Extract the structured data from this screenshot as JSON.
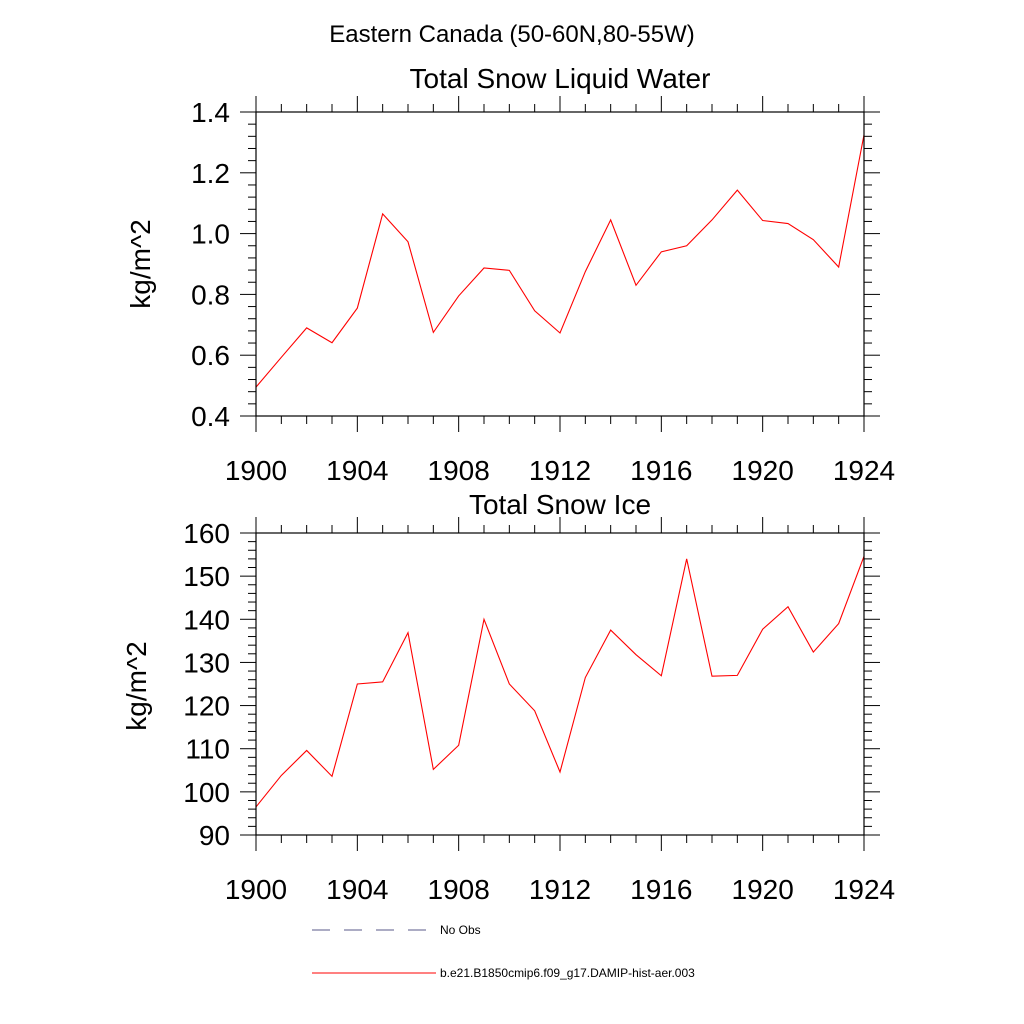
{
  "figure_title": "Eastern Canada (50-60N,80-55W)",
  "chart_data": [
    {
      "type": "line",
      "title": "Total Snow Liquid Water",
      "xlabel": "",
      "ylabel": "kg/m^2",
      "xlim": [
        1900,
        1924
      ],
      "ylim": [
        0.4,
        1.4
      ],
      "x_ticks": [
        1900,
        1904,
        1908,
        1912,
        1916,
        1920,
        1924
      ],
      "y_ticks": [
        0.4,
        0.6,
        0.8,
        1.0,
        1.2,
        1.4
      ],
      "x_tick_labels": [
        "1900",
        "1904",
        "1908",
        "1912",
        "1916",
        "1920",
        "1924"
      ],
      "y_tick_labels": [
        "0.4",
        "0.6",
        "0.8",
        "1.0",
        "1.2",
        "1.4"
      ],
      "grid": false,
      "series": [
        {
          "name": "b.e21.B1850cmip6.f09_g17.DAMIP-hist-aer.003",
          "color": "#ff0000",
          "x": [
            1900,
            1901,
            1902,
            1903,
            1904,
            1905,
            1906,
            1907,
            1908,
            1909,
            1910,
            1911,
            1912,
            1913,
            1914,
            1915,
            1916,
            1917,
            1918,
            1919,
            1920,
            1921,
            1922,
            1923,
            1924
          ],
          "values": [
            0.495,
            0.593,
            0.69,
            0.641,
            0.755,
            1.065,
            0.973,
            0.675,
            0.795,
            0.887,
            0.879,
            0.746,
            0.673,
            0.875,
            1.045,
            0.83,
            0.94,
            0.96,
            1.045,
            1.143,
            1.043,
            1.033,
            0.98,
            0.89,
            1.325
          ]
        }
      ]
    },
    {
      "type": "line",
      "title": "Total Snow Ice",
      "xlabel": "",
      "ylabel": "kg/m^2",
      "xlim": [
        1900,
        1924
      ],
      "ylim": [
        90,
        160
      ],
      "x_ticks": [
        1900,
        1904,
        1908,
        1912,
        1916,
        1920,
        1924
      ],
      "y_ticks": [
        90,
        100,
        110,
        120,
        130,
        140,
        150,
        160
      ],
      "x_tick_labels": [
        "1900",
        "1904",
        "1908",
        "1912",
        "1916",
        "1920",
        "1924"
      ],
      "y_tick_labels": [
        "90",
        "100",
        "110",
        "120",
        "130",
        "140",
        "150",
        "160"
      ],
      "grid": false,
      "series": [
        {
          "name": "b.e21.B1850cmip6.f09_g17.DAMIP-hist-aer.003",
          "color": "#ff0000",
          "x": [
            1900,
            1901,
            1902,
            1903,
            1904,
            1905,
            1906,
            1907,
            1908,
            1909,
            1910,
            1911,
            1912,
            1913,
            1914,
            1915,
            1916,
            1917,
            1918,
            1919,
            1920,
            1921,
            1922,
            1923,
            1924
          ],
          "values": [
            96.5,
            103.8,
            109.6,
            103.6,
            125.0,
            125.5,
            136.9,
            105.2,
            110.8,
            140.0,
            125.0,
            118.8,
            104.6,
            126.5,
            137.5,
            131.8,
            126.9,
            154.0,
            126.8,
            127.0,
            137.7,
            142.9,
            132.4,
            139.0,
            154.6
          ]
        }
      ]
    }
  ],
  "legend": {
    "placement": "bottom-left",
    "entries": [
      {
        "label": "No Obs",
        "style": "dashed",
        "color": "#5a5a8a"
      },
      {
        "label": "b.e21.B1850cmip6.f09_g17.DAMIP-hist-aer.003",
        "style": "solid",
        "color": "#ff0000"
      }
    ]
  }
}
